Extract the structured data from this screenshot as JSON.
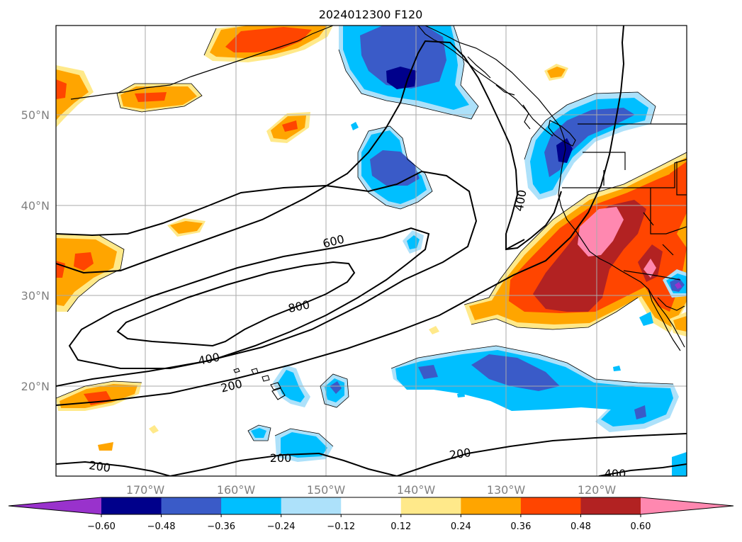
{
  "title": "2024012300 F120",
  "colors": {
    "neg_extreme": "#9932CC",
    "neg_060": "#00008B",
    "neg_048": "#3A5BC8",
    "neg_036": "#00BFFF",
    "neg_024": "#ADE1FA",
    "neutral": "#FFFFFF",
    "pos_012": "#FFE98A",
    "pos_024": "#FFA500",
    "pos_036": "#FF4500",
    "pos_048": "#B22222",
    "pos_060": "#FF88B0",
    "contour": "#000000",
    "grid": "#AAAAAA",
    "axis_label": "#808080"
  },
  "map": {
    "lon_labels": [
      "170°W",
      "160°W",
      "150°W",
      "140°W",
      "130°W",
      "120°W"
    ],
    "lat_labels": [
      "50°N",
      "40°N",
      "30°N",
      "20°N"
    ],
    "grid": true
  },
  "colorbar": {
    "ticks": [
      "−0.60",
      "−0.48",
      "−0.36",
      "−0.24",
      "−0.12",
      "0.12",
      "0.24",
      "0.36",
      "0.48",
      "0.60"
    ],
    "segment_colors": [
      "#00008B",
      "#3A5BC8",
      "#00BFFF",
      "#ADE1FA",
      "#FFFFFF",
      "#FFE98A",
      "#FFA500",
      "#FF4500",
      "#B22222"
    ],
    "extend_low_color": "#9932CC",
    "extend_high_color": "#FF88B0"
  },
  "contours": {
    "labels": [
      "800",
      "600",
      "400",
      "400",
      "200",
      "200",
      "200",
      "200",
      "400"
    ]
  }
}
